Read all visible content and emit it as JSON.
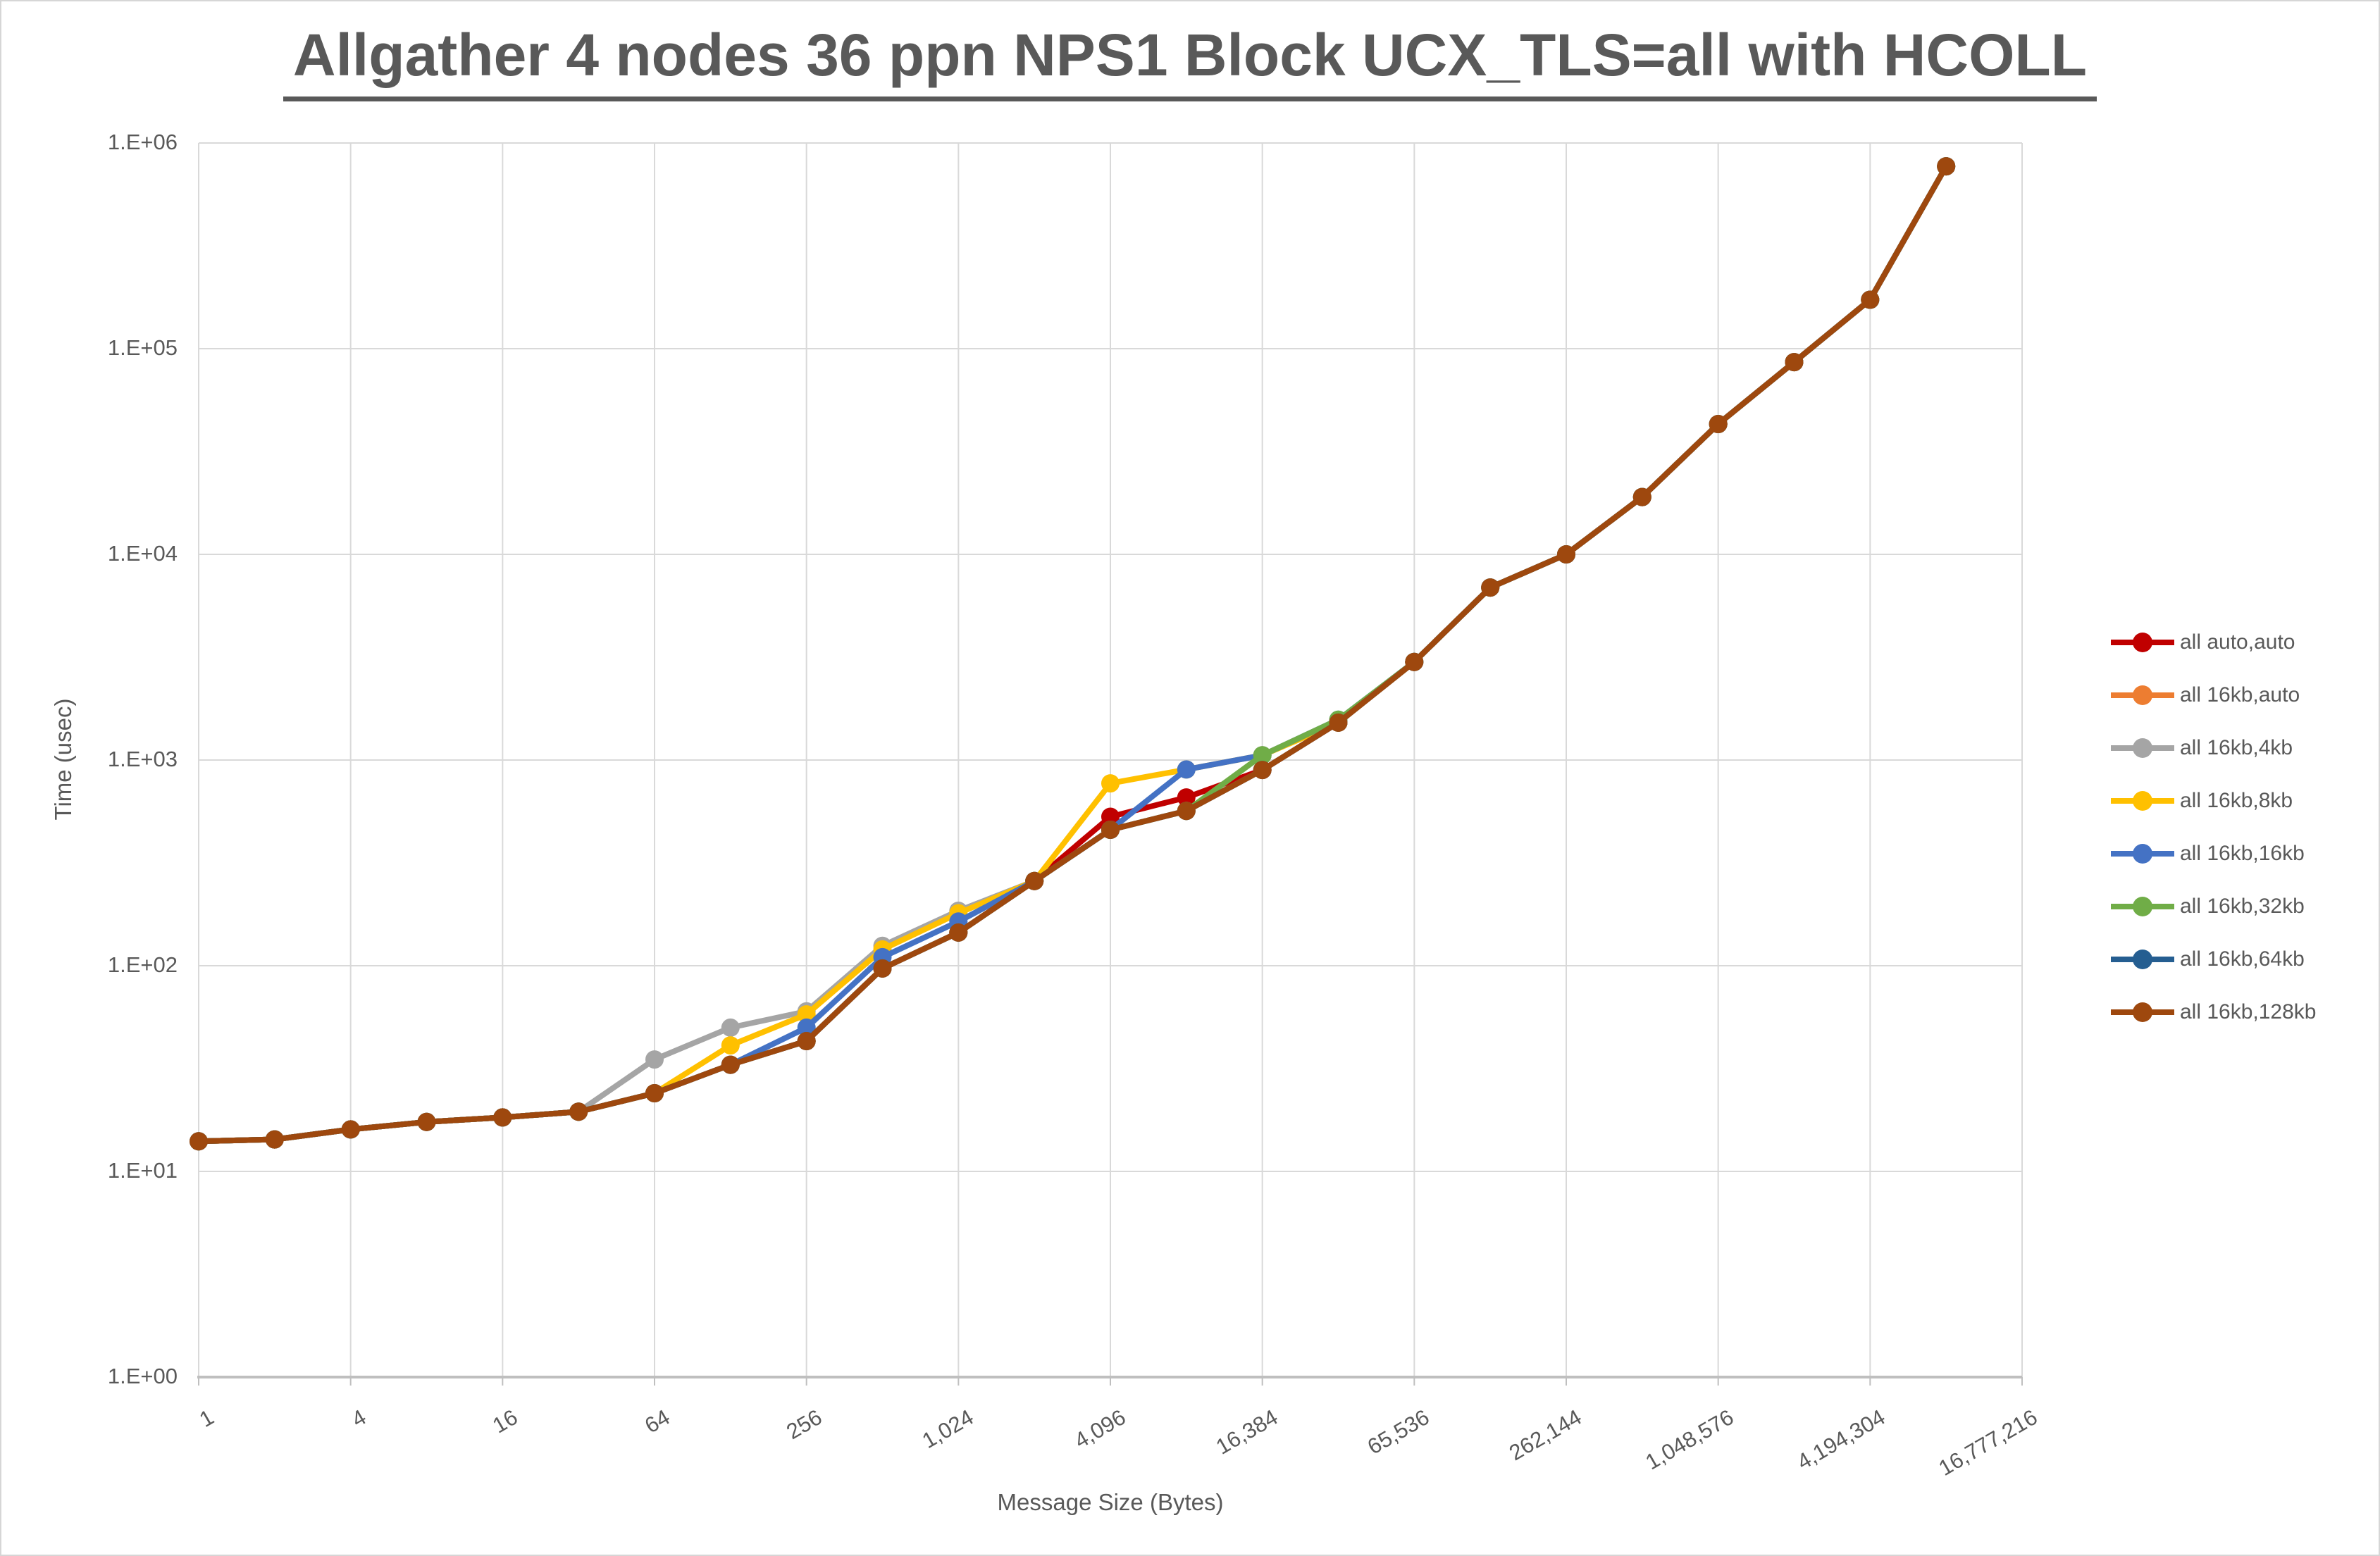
{
  "title": "Allgather 4 nodes 36 ppn NPS1 Block UCX_TLS=all with HCOLL",
  "chart_data": {
    "type": "line",
    "title": "Allgather 4 nodes 36 ppn NPS1 Block UCX_TLS=all with HCOLL",
    "xlabel": "Message Size (Bytes)",
    "ylabel": "Time (usec)",
    "x_scale": "log2-categories",
    "y_scale": "log10",
    "ylim": [
      1,
      1000000
    ],
    "y_tick_labels": [
      "1.E+00",
      "1.E+01",
      "1.E+02",
      "1.E+03",
      "1.E+04",
      "1.E+05",
      "1.E+06"
    ],
    "x_tick_labels": [
      "1",
      "4",
      "16",
      "64",
      "256",
      "1,024",
      "4,096",
      "16,384",
      "65,536",
      "262,144",
      "1,048,576",
      "4,194,304",
      "16,777,216"
    ],
    "x_axis_max": 16777216,
    "grid": true,
    "legend_position": "right",
    "x_points": [
      1,
      2,
      4,
      8,
      16,
      32,
      64,
      128,
      256,
      512,
      1024,
      2048,
      4096,
      8192,
      16384,
      32768,
      65536,
      131072,
      262144,
      524288,
      1048576,
      2097152,
      4194304,
      8388608
    ],
    "series": [
      {
        "name": "all auto,auto",
        "color": "#C00000",
        "values": [
          14,
          14.3,
          16,
          17.4,
          18.3,
          19.5,
          24,
          33,
          43,
          97,
          145,
          258,
          530,
          658,
          895,
          1520,
          3000,
          6900,
          10000,
          19000,
          43000,
          86000,
          173000,
          770000
        ]
      },
      {
        "name": "all 16kb,auto",
        "color": "#ED7D31",
        "values": [
          14,
          14.3,
          16,
          17.4,
          18.3,
          19.5,
          24,
          33,
          43,
          97,
          145,
          258,
          458,
          566,
          895,
          1520,
          3000,
          6900,
          10000,
          19000,
          43000,
          86000,
          173000,
          770000
        ]
      },
      {
        "name": "all 16kb,4kb",
        "color": "#A5A5A5",
        "values": [
          14,
          14.3,
          16,
          17.4,
          18.3,
          19.5,
          35,
          50,
          60,
          125,
          185,
          258,
          458,
          566,
          895,
          1520,
          3000,
          6900,
          10000,
          19000,
          43000,
          86000,
          173000,
          770000
        ]
      },
      {
        "name": "all 16kb,8kb",
        "color": "#FFC000",
        "values": [
          14,
          14.3,
          16,
          17.4,
          18.3,
          19.5,
          24,
          41,
          58,
          120,
          180,
          258,
          770,
          900,
          1055,
          1520,
          3000,
          6900,
          10000,
          19000,
          43000,
          86000,
          173000,
          770000
        ]
      },
      {
        "name": "all 16kb,16kb",
        "color": "#4472C4",
        "values": [
          14,
          14.3,
          16,
          17.4,
          18.3,
          19.5,
          24,
          33,
          50,
          110,
          164,
          258,
          458,
          900,
          1055,
          1570,
          3000,
          6900,
          10000,
          19000,
          43000,
          86000,
          173000,
          770000
        ]
      },
      {
        "name": "all 16kb,32kb",
        "color": "#70AD47",
        "values": [
          14,
          14.3,
          16,
          17.4,
          18.3,
          19.5,
          24,
          33,
          43,
          97,
          145,
          258,
          458,
          566,
          1055,
          1570,
          3000,
          6900,
          10000,
          19000,
          43000,
          86000,
          173000,
          770000
        ]
      },
      {
        "name": "all 16kb,64kb",
        "color": "#255E91",
        "values": [
          14,
          14.3,
          16,
          17.4,
          18.3,
          19.5,
          24,
          33,
          43,
          97,
          145,
          258,
          458,
          566,
          895,
          1520,
          3000,
          6900,
          10000,
          19000,
          43000,
          86000,
          173000,
          770000
        ]
      },
      {
        "name": "all 16kb,128kb",
        "color": "#9E480E",
        "values": [
          14,
          14.3,
          16,
          17.4,
          18.3,
          19.5,
          24,
          33,
          43,
          97,
          145,
          258,
          458,
          566,
          895,
          1520,
          3000,
          6900,
          10000,
          19000,
          43000,
          86000,
          173000,
          770000
        ]
      }
    ]
  },
  "colors": {
    "text": "#595959",
    "gridline": "#D9D9D9",
    "axis_line": "#BFBFBF",
    "background": "#FFFFFF"
  }
}
